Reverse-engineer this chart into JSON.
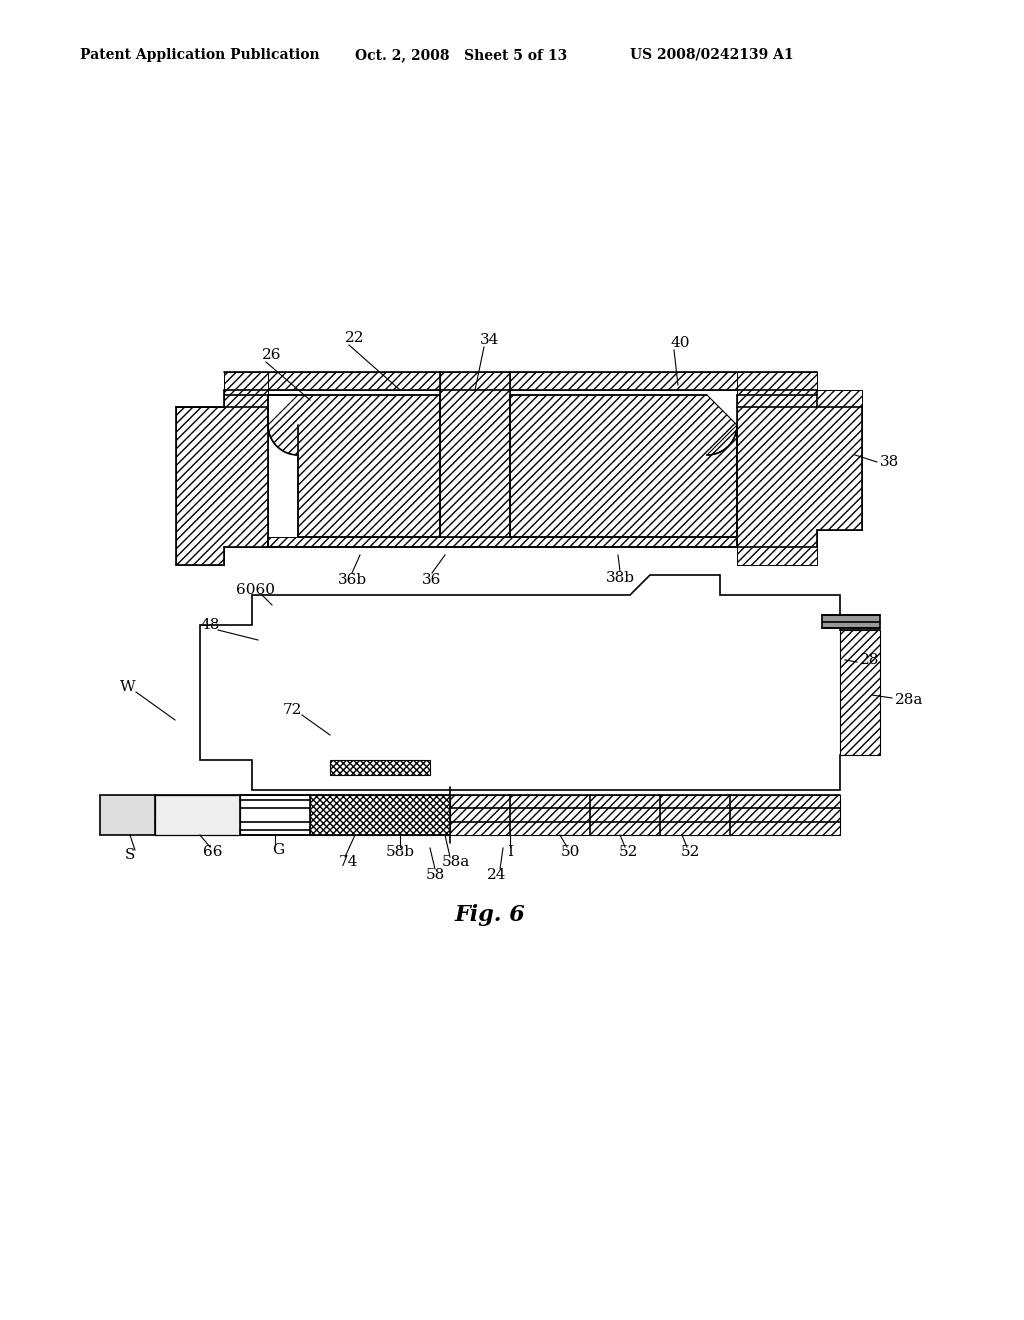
{
  "background_color": "#ffffff",
  "header_left": "Patent Application Publication",
  "header_mid": "Oct. 2, 2008   Sheet 5 of 13",
  "header_right": "US 2008/0242139 A1",
  "figure_label": "Fig. 6",
  "fig_width": 10.24,
  "fig_height": 13.2,
  "dpi": 100
}
